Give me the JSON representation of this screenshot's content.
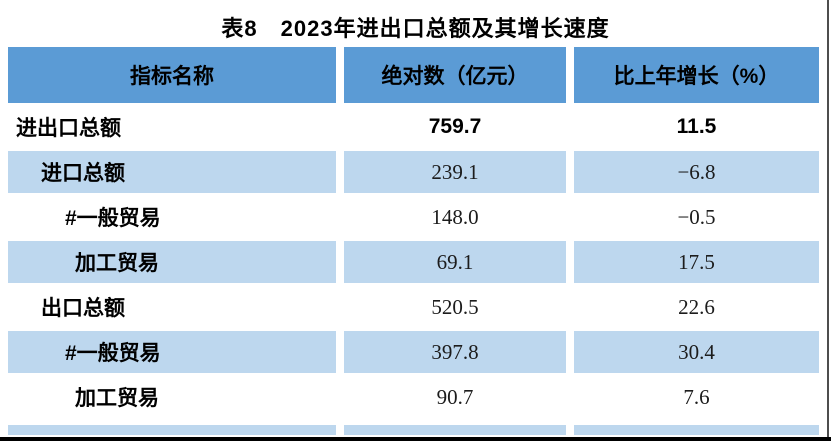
{
  "title": "表8　2023年进出口总额及其增长速度",
  "table": {
    "columns": [
      {
        "label": "指标名称"
      },
      {
        "label": "绝对数（亿元）"
      },
      {
        "label": "比上年增长（%）"
      }
    ],
    "rows": [
      {
        "label": "进出口总额",
        "absolute": "759.7",
        "growth": "11.5",
        "indent": 0,
        "emphasis": true
      },
      {
        "label": "进口总额",
        "absolute": "239.1",
        "growth": "−6.8",
        "indent": 1,
        "emphasis": false
      },
      {
        "label": "#一般贸易",
        "absolute": "148.0",
        "growth": "−0.5",
        "indent": 2,
        "emphasis": false
      },
      {
        "label": "加工贸易",
        "absolute": "69.1",
        "growth": "17.5",
        "indent": 3,
        "emphasis": false
      },
      {
        "label": "出口总额",
        "absolute": "520.5",
        "growth": "22.6",
        "indent": 1,
        "emphasis": false
      },
      {
        "label": "#一般贸易",
        "absolute": "397.8",
        "growth": "30.4",
        "indent": 2,
        "emphasis": false
      },
      {
        "label": "加工贸易",
        "absolute": "90.7",
        "growth": "7.6",
        "indent": 3,
        "emphasis": false
      }
    ]
  },
  "colors": {
    "header_bg": "#5B9BD5",
    "zebra_bg": "#BDD7EE",
    "text": "#000000"
  }
}
